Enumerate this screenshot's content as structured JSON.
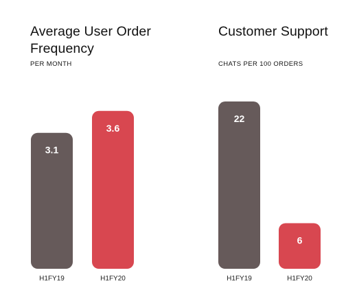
{
  "colors": {
    "h1fy19": "#665a5a",
    "h1fy20": "#d84750",
    "label_text": "#ffffff",
    "axis_text": "#222222"
  },
  "chart_data": [
    {
      "type": "bar",
      "title": "Average User Order Frequency",
      "subtitle": "PER MONTH",
      "categories": [
        "H1FY19",
        "H1FY20"
      ],
      "values": [
        3.1,
        3.6
      ],
      "data_labels": [
        "3.1",
        "3.6"
      ],
      "ylim": [
        0,
        4.3
      ],
      "grid": false,
      "legend": "none"
    },
    {
      "type": "bar",
      "title": "Customer Support",
      "subtitle": "CHATS PER 100 ORDERS",
      "categories": [
        "H1FY19",
        "H1FY20"
      ],
      "values": [
        22,
        6
      ],
      "data_labels": [
        "22",
        "6"
      ],
      "ylim": [
        0,
        24.8
      ],
      "grid": false,
      "legend": "none"
    }
  ]
}
